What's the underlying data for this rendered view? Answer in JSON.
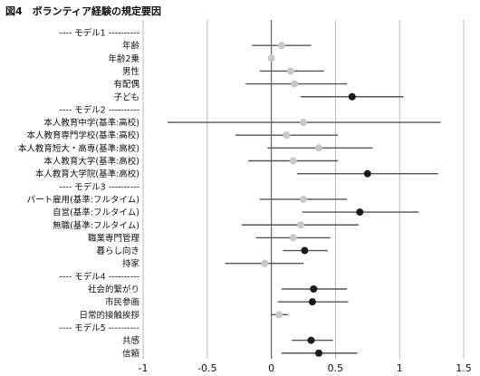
{
  "figure": {
    "title": "図4　ボランティア経験の規定要因"
  },
  "chart_data": {
    "type": "scatter",
    "subtype": "coefficient-plot",
    "title": "図4　ボランティア経験の規定要因",
    "xlim": [
      -1,
      1.5
    ],
    "x_ticks": [
      -1,
      -0.5,
      0,
      0.5,
      1,
      1.5
    ],
    "x_tick_labels": [
      "-1",
      "-0.5",
      "0",
      "0.5",
      "1",
      "1.5"
    ],
    "grid": "vertical",
    "colors": {
      "significant": "#1a1a1a",
      "not_significant": "#c8c8c8",
      "interval": "#555555",
      "grid": "#aaaaaa"
    },
    "rows": [
      {
        "label": "---- モデル1 ----------",
        "header": true
      },
      {
        "label": "年齢",
        "estimate": 0.08,
        "low": -0.15,
        "high": 0.31,
        "significant": false
      },
      {
        "label": "年齢2乗",
        "estimate": 0.0,
        "low": -0.01,
        "high": 0.01,
        "significant": false
      },
      {
        "label": "男性",
        "estimate": 0.15,
        "low": -0.09,
        "high": 0.41,
        "significant": false
      },
      {
        "label": "有配偶",
        "estimate": 0.18,
        "low": -0.2,
        "high": 0.59,
        "significant": false
      },
      {
        "label": "子ども",
        "estimate": 0.63,
        "low": 0.23,
        "high": 1.03,
        "significant": true
      },
      {
        "label": "---- モデル2 ----------",
        "header": true
      },
      {
        "label": "本人教育中学(基準:高校)",
        "estimate": 0.25,
        "low": -0.81,
        "high": 1.32,
        "significant": false
      },
      {
        "label": "本人教育専門学校(基準:高校)",
        "estimate": 0.12,
        "low": -0.28,
        "high": 0.52,
        "significant": false
      },
      {
        "label": "本人教育短大・高専(基準:高校)",
        "estimate": 0.37,
        "low": -0.03,
        "high": 0.79,
        "significant": false
      },
      {
        "label": "本人教育大学(基準:高校)",
        "estimate": 0.17,
        "low": -0.18,
        "high": 0.52,
        "significant": false
      },
      {
        "label": "本人教育大学院(基準:高校)",
        "estimate": 0.75,
        "low": 0.2,
        "high": 1.3,
        "significant": true
      },
      {
        "label": "---- モデル3 ----------",
        "header": true
      },
      {
        "label": "パート雇用(基準:フルタイム)",
        "estimate": 0.25,
        "low": -0.09,
        "high": 0.59,
        "significant": false
      },
      {
        "label": "自営(基準:フルタイム)",
        "estimate": 0.69,
        "low": 0.24,
        "high": 1.15,
        "significant": true
      },
      {
        "label": "無職(基準:フルタイム)",
        "estimate": 0.23,
        "low": -0.23,
        "high": 0.68,
        "significant": false
      },
      {
        "label": "職業専門管理",
        "estimate": 0.17,
        "low": -0.12,
        "high": 0.46,
        "significant": false
      },
      {
        "label": "暮らし向き",
        "estimate": 0.26,
        "low": 0.09,
        "high": 0.44,
        "significant": true
      },
      {
        "label": "持家",
        "estimate": -0.05,
        "low": -0.36,
        "high": 0.25,
        "significant": false
      },
      {
        "label": "---- モデル4 ----------",
        "header": true
      },
      {
        "label": "社会的繋がり",
        "estimate": 0.33,
        "low": 0.08,
        "high": 0.59,
        "significant": true
      },
      {
        "label": "市民参画",
        "estimate": 0.32,
        "low": 0.05,
        "high": 0.6,
        "significant": true
      },
      {
        "label": "日常的接触挨拶",
        "estimate": 0.06,
        "low": 0.0,
        "high": 0.13,
        "significant": false
      },
      {
        "label": "---- モデル5 ----------",
        "header": true
      },
      {
        "label": "共感",
        "estimate": 0.31,
        "low": 0.16,
        "high": 0.48,
        "significant": true
      },
      {
        "label": "信頼",
        "estimate": 0.37,
        "low": 0.08,
        "high": 0.67,
        "significant": true
      }
    ]
  }
}
